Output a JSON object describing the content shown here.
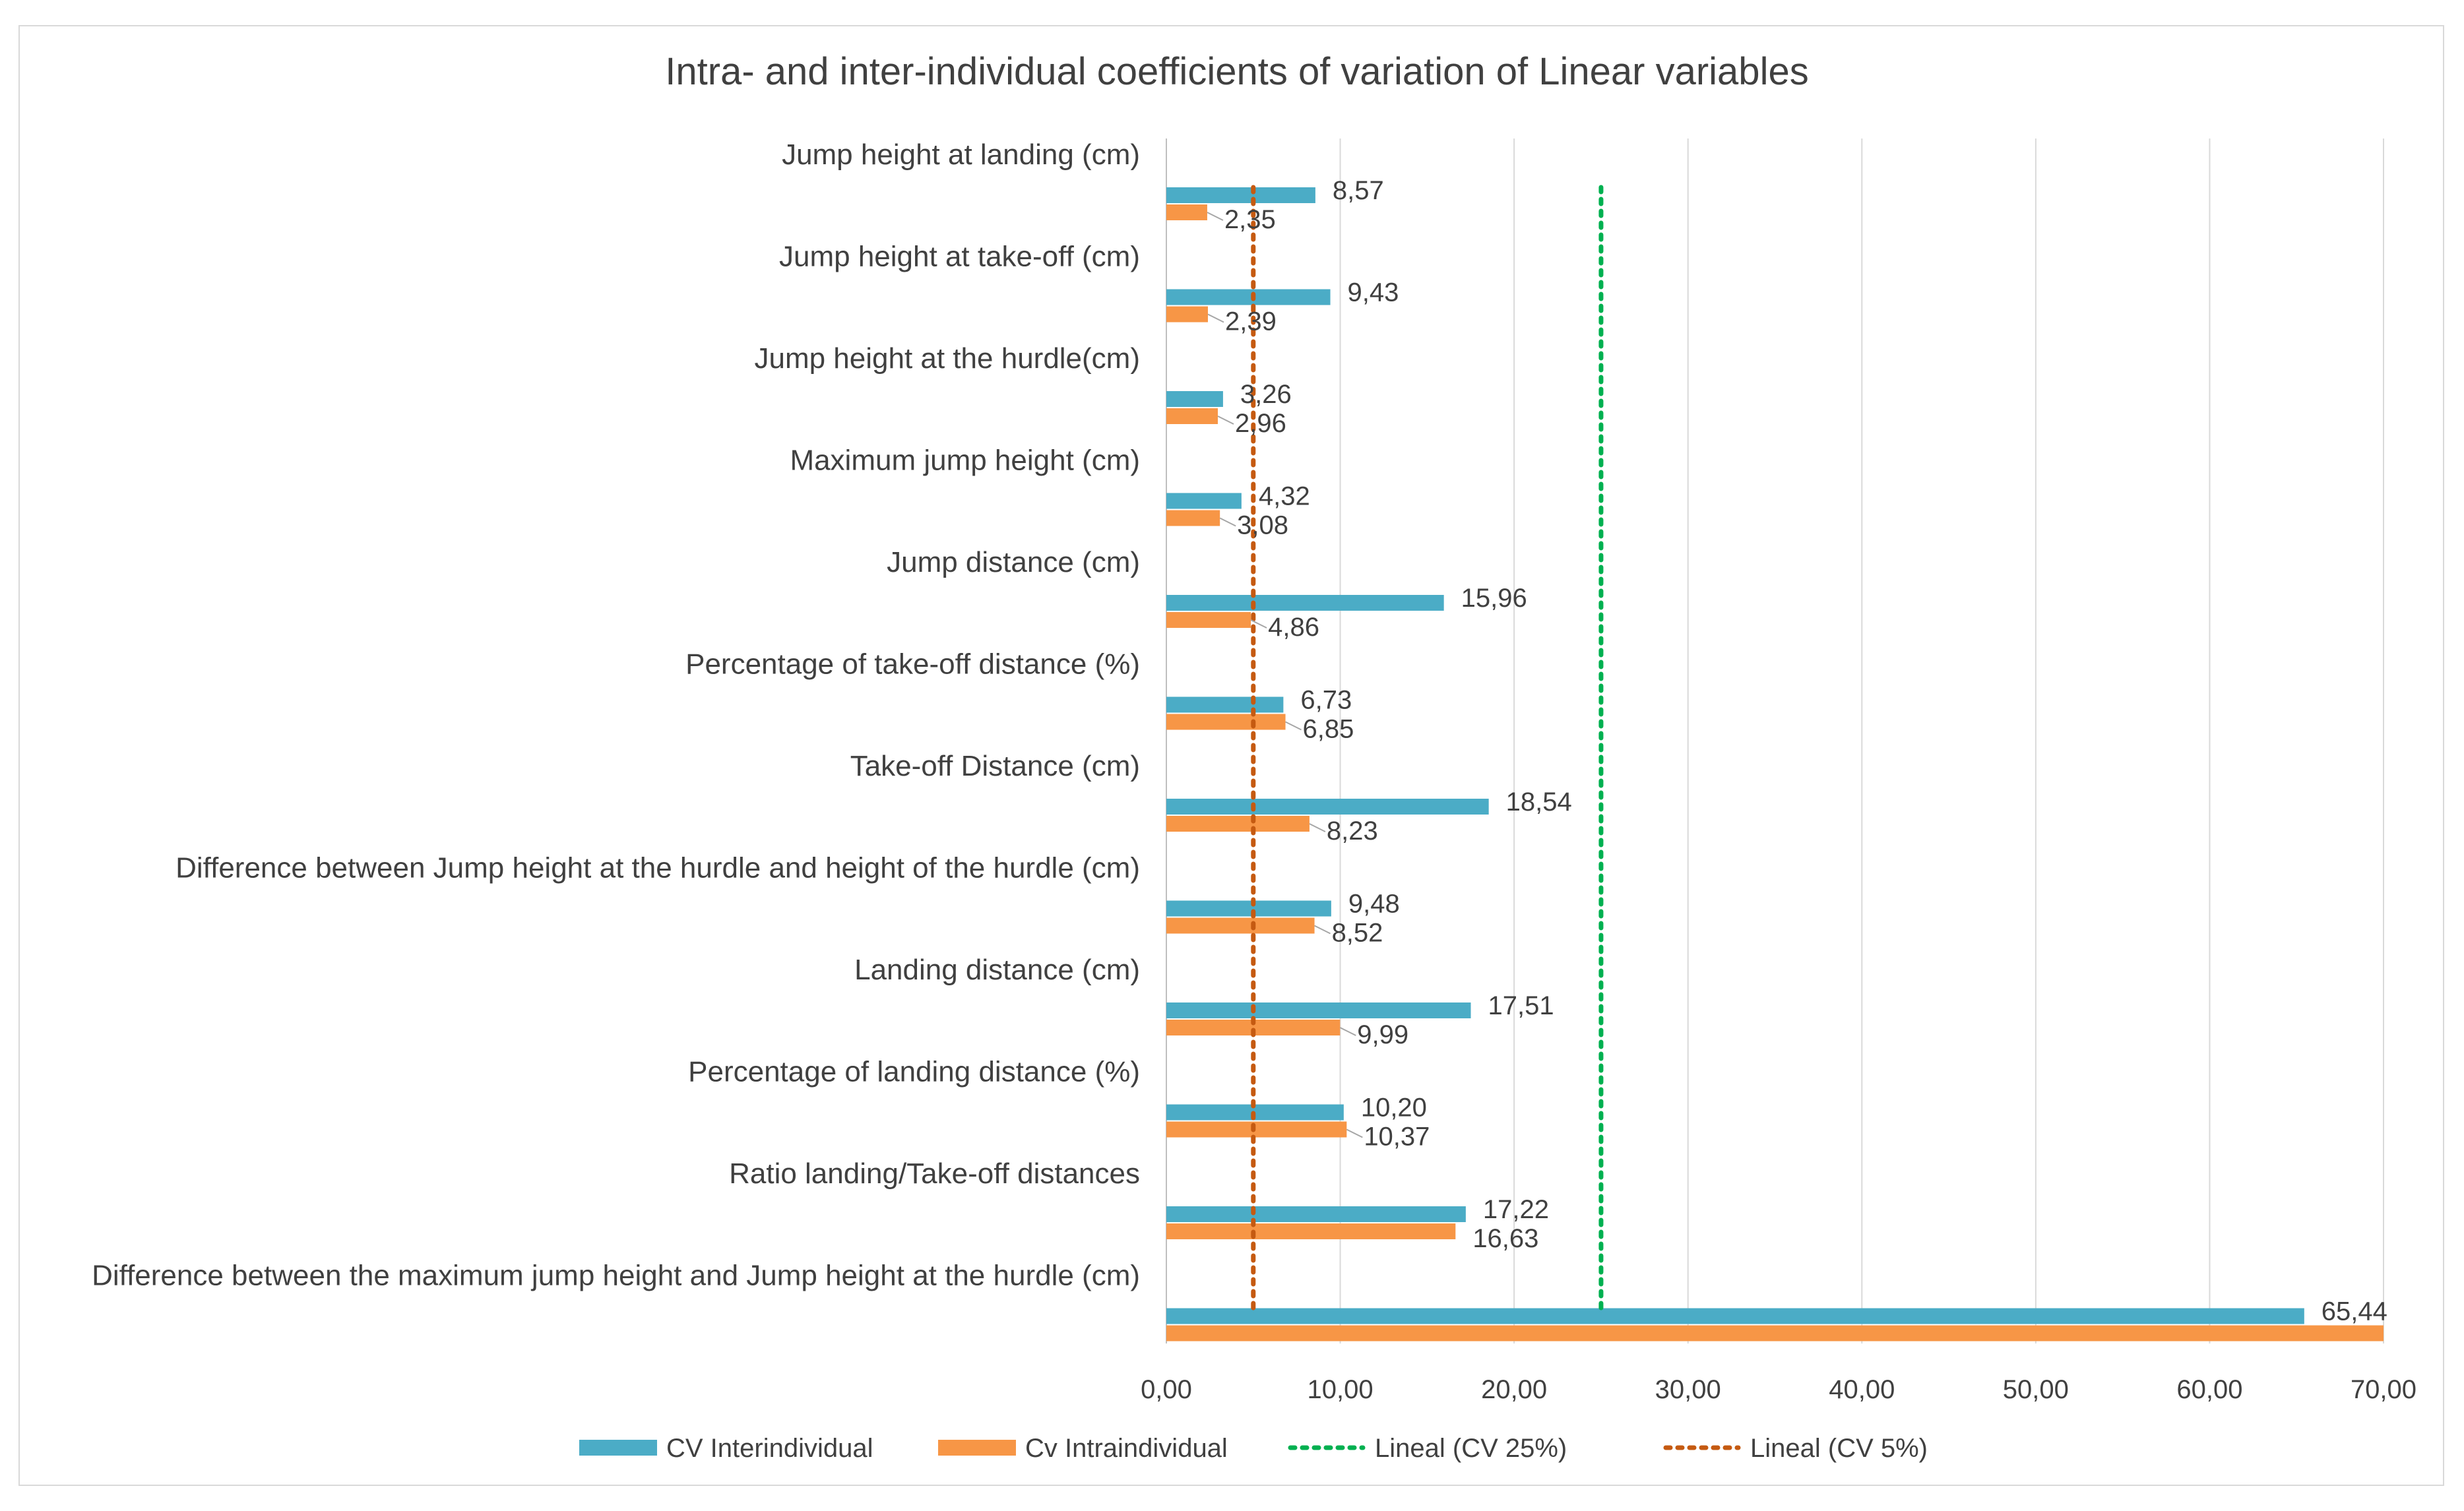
{
  "chart_data": {
    "type": "bar",
    "orientation": "horizontal",
    "title": "Intra- and inter-individual coefficients of variation of Linear variables",
    "categories": [
      "Jump height at landing (cm)",
      "Jump height at take-off (cm)",
      "Jump height at the hurdle(cm)",
      "Maximum jump height (cm)",
      "Jump distance (cm)",
      "Percentage of take-off distance (%)",
      "Take-off Distance (cm)",
      "Difference between Jump height at the hurdle and height of the hurdle (cm)",
      "Landing distance (cm)",
      "Percentage of landing distance (%)",
      "Ratio landing/Take-off distances",
      "Difference between the maximum jump height and Jump height at the hurdle (cm)"
    ],
    "series": [
      {
        "name": "CV Interindividual",
        "color": "#4bacc6",
        "values": [
          8.57,
          9.43,
          3.26,
          4.32,
          15.96,
          6.73,
          18.54,
          9.48,
          17.51,
          10.2,
          17.22,
          65.44
        ],
        "labels": [
          "8,57",
          "9,43",
          "3,26",
          "4,32",
          "15,96",
          "6,73",
          "18,54",
          "9,48",
          "17,51",
          "10,20",
          "17,22",
          "65,44"
        ]
      },
      {
        "name": "Cv Intraindividual",
        "color": "#f79646",
        "values": [
          2.35,
          2.39,
          2.96,
          3.08,
          4.86,
          6.85,
          8.23,
          8.52,
          9.99,
          10.37,
          16.63,
          70.0
        ],
        "labels": [
          "2,35",
          "2,39",
          "2,96",
          "3,08",
          "4,86",
          "6,85",
          "8,23",
          "8,52",
          "9,99",
          "10,37",
          "16,63",
          ""
        ]
      }
    ],
    "reference_lines": [
      {
        "name": "Lineal (CV 25%)",
        "value": 25,
        "color": "#00b050"
      },
      {
        "name": "Lineal (CV 5%)",
        "value": 5,
        "color": "#c55a11"
      }
    ],
    "xlim": [
      0,
      70
    ],
    "xticks": [
      0,
      10,
      20,
      30,
      40,
      50,
      60,
      70
    ],
    "xtick_labels": [
      "0,00",
      "10,00",
      "20,00",
      "30,00",
      "40,00",
      "50,00",
      "60,00",
      "70,00"
    ],
    "grid": "vertical",
    "legend": "bottom",
    "xlabel": "",
    "ylabel": ""
  },
  "colors": {
    "gridline": "#d9d9d9",
    "axis": "#bfbfbf",
    "text": "#404040",
    "leader": "#a6a6a6"
  }
}
